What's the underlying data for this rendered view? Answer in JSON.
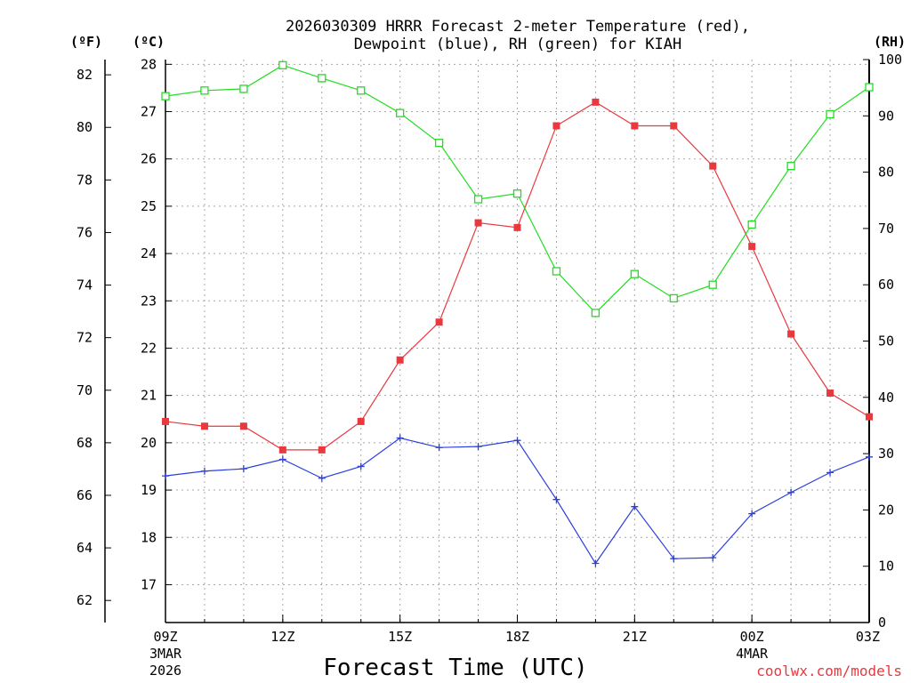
{
  "chart_data": {
    "type": "line",
    "title_line1": "2026030309 HRRR Forecast 2-meter Temperature (red),",
    "title_line2": "Dewpoint (blue), RH (green) for KIAH",
    "xlabel": "Forecast Time (UTC)",
    "credit": "coolwx.com/models",
    "units": {
      "fahrenheit": "(ºF)",
      "celsius": "(ºC)",
      "rh": "(RH)"
    },
    "x": [
      0,
      1,
      2,
      3,
      4,
      5,
      6,
      7,
      8,
      9,
      10,
      11,
      12,
      13,
      14,
      15,
      16,
      17,
      18
    ],
    "xlim": [
      0,
      18
    ],
    "x_ticks": [
      {
        "x": 0,
        "label": "09Z",
        "sub1": "3MAR",
        "sub2": "2026"
      },
      {
        "x": 3,
        "label": "12Z",
        "sub1": "",
        "sub2": ""
      },
      {
        "x": 6,
        "label": "15Z",
        "sub1": "",
        "sub2": ""
      },
      {
        "x": 9,
        "label": "18Z",
        "sub1": "",
        "sub2": ""
      },
      {
        "x": 12,
        "label": "21Z",
        "sub1": "",
        "sub2": ""
      },
      {
        "x": 15,
        "label": "00Z",
        "sub1": "4MAR",
        "sub2": ""
      },
      {
        "x": 18,
        "label": "03Z",
        "sub1": "",
        "sub2": ""
      }
    ],
    "celsius_axis": {
      "ticks": [
        17,
        18,
        19,
        20,
        21,
        22,
        23,
        24,
        25,
        26,
        27,
        28
      ],
      "ylim": [
        16.2,
        28.1
      ]
    },
    "fahrenheit_axis": {
      "ticks": [
        62,
        64,
        66,
        68,
        70,
        72,
        74,
        76,
        78,
        80,
        82
      ]
    },
    "rh_axis": {
      "ticks": [
        0,
        10,
        20,
        30,
        40,
        50,
        60,
        70,
        80,
        90,
        100
      ],
      "ylim": [
        0,
        100
      ]
    },
    "series": [
      {
        "name": "Temperature",
        "axis": "celsius",
        "color": "#e8393f",
        "marker": "filled-square",
        "values": [
          20.45,
          20.35,
          20.35,
          19.85,
          19.85,
          20.45,
          21.75,
          22.55,
          24.65,
          24.55,
          26.7,
          27.2,
          26.7,
          26.7,
          25.85,
          24.15,
          22.3,
          21.05,
          20.55
        ]
      },
      {
        "name": "Dewpoint",
        "axis": "celsius",
        "color": "#2a3fe0",
        "marker": "plus",
        "values": [
          19.3,
          19.4,
          19.45,
          19.65,
          19.25,
          19.5,
          20.1,
          19.9,
          19.92,
          20.05,
          18.8,
          17.45,
          18.65,
          17.55,
          17.57,
          18.5,
          18.95,
          19.37,
          19.7
        ]
      },
      {
        "name": "RH",
        "axis": "rh",
        "color": "#22dd22",
        "marker": "open-square",
        "values": [
          93.5,
          94.5,
          94.8,
          99.0,
          96.7,
          94.5,
          90.5,
          85.2,
          75.2,
          76.2,
          62.4,
          55.0,
          61.9,
          57.6,
          60.0,
          70.7,
          81.1,
          90.3,
          95.1
        ]
      }
    ]
  }
}
